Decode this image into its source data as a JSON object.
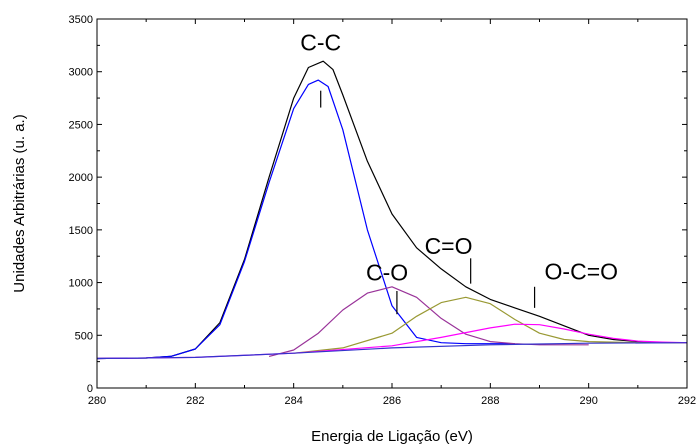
{
  "chart_data": {
    "type": "line",
    "xlabel": "Energia de Ligação (eV)",
    "ylabel": "Unidades Arbitrárias (u. a.)",
    "xlim": [
      280,
      292
    ],
    "ylim": [
      0,
      3500
    ],
    "x_ticks": [
      280,
      282,
      284,
      286,
      288,
      290,
      292
    ],
    "y_ticks": [
      0,
      500,
      1000,
      1500,
      2000,
      2500,
      3000,
      3500
    ],
    "grid": false,
    "legend": "none",
    "series": [
      {
        "color": "#000000",
        "x": [
          280.0,
          281.0,
          281.5,
          282.0,
          282.5,
          283.0,
          283.5,
          284.0,
          284.3,
          284.6,
          284.8,
          285.0,
          285.5,
          286.0,
          286.5,
          287.0,
          287.5,
          288.0,
          288.5,
          289.0,
          289.5,
          290.0,
          290.5,
          291.0,
          291.5,
          292.0
        ],
        "y": [
          280,
          285,
          300,
          370,
          620,
          1220,
          2000,
          2750,
          3040,
          3100,
          3020,
          2780,
          2150,
          1650,
          1330,
          1130,
          960,
          840,
          760,
          680,
          590,
          500,
          460,
          440,
          430,
          430
        ]
      },
      {
        "color": "#0000ff",
        "x": [
          280.0,
          281.0,
          281.5,
          282.0,
          282.5,
          283.0,
          283.5,
          284.0,
          284.3,
          284.5,
          284.7,
          285.0,
          285.5,
          286.0,
          286.5,
          287.0,
          287.5,
          288.0,
          288.5
        ],
        "y": [
          280,
          285,
          300,
          370,
          600,
          1200,
          1950,
          2650,
          2880,
          2920,
          2860,
          2450,
          1500,
          780,
          480,
          430,
          420,
          420,
          420
        ]
      },
      {
        "color": "#993399",
        "x": [
          283.5,
          284.0,
          284.5,
          285.0,
          285.5,
          286.0,
          286.5,
          287.0,
          287.5,
          288.0,
          288.5,
          289.0,
          290.0
        ],
        "y": [
          300,
          360,
          520,
          740,
          900,
          960,
          860,
          660,
          510,
          440,
          420,
          410,
          410
        ]
      },
      {
        "color": "#999933",
        "x": [
          284.0,
          285.0,
          286.0,
          286.5,
          287.0,
          287.5,
          288.0,
          288.5,
          289.0,
          289.5,
          290.0,
          291.0,
          292.0
        ],
        "y": [
          330,
          380,
          520,
          680,
          810,
          860,
          800,
          650,
          520,
          460,
          440,
          430,
          430
        ]
      },
      {
        "color": "#ff00ff",
        "x": [
          280.0,
          282.0,
          284.0,
          286.0,
          287.0,
          288.0,
          288.5,
          289.0,
          289.5,
          290.0,
          290.5,
          291.0,
          291.5,
          292.0
        ],
        "y": [
          280,
          290,
          330,
          400,
          480,
          570,
          605,
          600,
          560,
          510,
          470,
          445,
          435,
          430
        ]
      },
      {
        "color": "#3333cc",
        "x": [
          280.0,
          282.0,
          284.0,
          286.0,
          288.0,
          290.0,
          292.0
        ],
        "y": [
          280,
          290,
          330,
          380,
          410,
          425,
          430
        ]
      }
    ],
    "annotations": [
      {
        "text": "C-C",
        "x": 284.55,
        "y": 3200,
        "marker_x": 284.55,
        "marker_y_top": 2820,
        "marker_y_bottom": 2660
      },
      {
        "text": "C-O",
        "x": 285.9,
        "y": 1020,
        "marker_x": 286.1,
        "marker_y_top": 920,
        "marker_y_bottom": 700
      },
      {
        "text": "C=O",
        "x": 287.15,
        "y": 1270,
        "marker_x": 287.6,
        "marker_y_top": 1230,
        "marker_y_bottom": 990
      },
      {
        "text": "O-C=O",
        "x": 289.85,
        "y": 1030,
        "marker_x": 288.9,
        "marker_y_top": 960,
        "marker_y_bottom": 760
      }
    ]
  }
}
